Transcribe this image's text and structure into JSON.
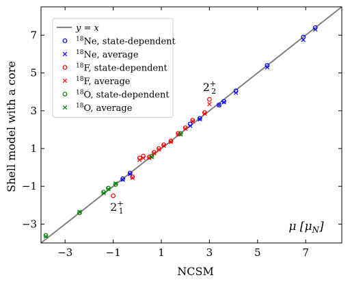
{
  "chart_data": {
    "type": "scatter",
    "xlabel": "NCSM",
    "ylabel": "Shell model with a core",
    "xlim": [
      -4,
      8.5
    ],
    "ylim": [
      -4,
      8.5
    ],
    "xticks": [
      -3,
      -1,
      1,
      3,
      5,
      7
    ],
    "yticks": [
      -3,
      -1,
      1,
      3,
      5,
      7
    ],
    "tick_labels": [
      "−3",
      "−1",
      "1",
      "3",
      "5",
      "7"
    ],
    "unit_label": "μ [μ_N]",
    "annotations": [
      {
        "text": "2",
        "sup": "+",
        "sub": "2",
        "x": 3.0,
        "y": 4.05
      },
      {
        "text": "2",
        "sup": "+",
        "sub": "1",
        "x": -0.85,
        "y": -2.3
      }
    ],
    "legend": {
      "position": "upper-left",
      "entries": [
        {
          "label": "y = x",
          "marker": "line",
          "color": "#808080"
        },
        {
          "label": "18Ne, state-dependent",
          "marker": "circle",
          "color": "#0000ff"
        },
        {
          "label": "18Ne, average",
          "marker": "cross",
          "color": "#0000ff"
        },
        {
          "label": "18F, state-dependent",
          "marker": "circle",
          "color": "#ff0000"
        },
        {
          "label": "18F, average",
          "marker": "cross",
          "color": "#ff0000"
        },
        {
          "label": "18O, state-dependent",
          "marker": "circle",
          "color": "#008000"
        },
        {
          "label": "18O, average",
          "marker": "cross",
          "color": "#008000"
        }
      ]
    },
    "series": [
      {
        "name": "18Ne, state-dependent",
        "marker": "circle",
        "color": "#0000ff",
        "points": [
          [
            -0.6,
            -0.6
          ],
          [
            -0.3,
            -0.3
          ],
          [
            2.2,
            2.3
          ],
          [
            2.6,
            2.6
          ],
          [
            3.4,
            3.3
          ],
          [
            3.6,
            3.5
          ],
          [
            4.1,
            4.05
          ],
          [
            5.4,
            5.4
          ],
          [
            6.9,
            6.9
          ],
          [
            7.4,
            7.4
          ]
        ]
      },
      {
        "name": "18Ne, average",
        "marker": "cross",
        "color": "#0000ff",
        "points": [
          [
            -0.6,
            -0.65
          ],
          [
            -0.3,
            -0.35
          ],
          [
            2.2,
            2.2
          ],
          [
            2.6,
            2.55
          ],
          [
            3.4,
            3.3
          ],
          [
            3.6,
            3.45
          ],
          [
            4.1,
            3.95
          ],
          [
            5.4,
            5.3
          ],
          [
            6.9,
            6.75
          ],
          [
            7.4,
            7.3
          ]
        ]
      },
      {
        "name": "18F, state-dependent",
        "marker": "circle",
        "color": "#ff0000",
        "points": [
          [
            -1.0,
            -1.5
          ],
          [
            -0.2,
            -0.5
          ],
          [
            0.1,
            0.5
          ],
          [
            0.25,
            0.6
          ],
          [
            0.5,
            0.55
          ],
          [
            0.7,
            0.8
          ],
          [
            0.9,
            1.0
          ],
          [
            1.1,
            1.2
          ],
          [
            1.4,
            1.4
          ],
          [
            1.7,
            1.8
          ],
          [
            2.0,
            2.1
          ],
          [
            2.3,
            2.5
          ],
          [
            2.8,
            2.9
          ],
          [
            3.0,
            3.6
          ]
        ]
      },
      {
        "name": "18F, average",
        "marker": "cross",
        "color": "#ff0000",
        "points": [
          [
            -0.2,
            -0.55
          ],
          [
            0.1,
            0.4
          ],
          [
            0.25,
            0.5
          ],
          [
            0.5,
            0.5
          ],
          [
            0.7,
            0.75
          ],
          [
            0.9,
            0.95
          ],
          [
            1.1,
            1.15
          ],
          [
            1.4,
            1.35
          ],
          [
            1.7,
            1.75
          ],
          [
            2.0,
            2.05
          ],
          [
            2.3,
            2.45
          ],
          [
            2.8,
            2.85
          ],
          [
            3.0,
            3.35
          ]
        ]
      },
      {
        "name": "18O, state-dependent",
        "marker": "circle",
        "color": "#008000",
        "points": [
          [
            -3.8,
            -3.6
          ],
          [
            -2.4,
            -2.4
          ],
          [
            -1.4,
            -1.3
          ],
          [
            -1.2,
            -1.1
          ],
          [
            -0.9,
            -0.9
          ],
          [
            0.6,
            0.6
          ],
          [
            1.8,
            1.8
          ]
        ]
      },
      {
        "name": "18O, average",
        "marker": "cross",
        "color": "#008000",
        "points": [
          [
            -3.8,
            -3.65
          ],
          [
            -2.4,
            -2.35
          ],
          [
            -1.4,
            -1.35
          ],
          [
            -1.2,
            -1.15
          ],
          [
            -0.9,
            -0.85
          ],
          [
            0.6,
            0.55
          ],
          [
            1.8,
            1.75
          ]
        ]
      }
    ]
  }
}
